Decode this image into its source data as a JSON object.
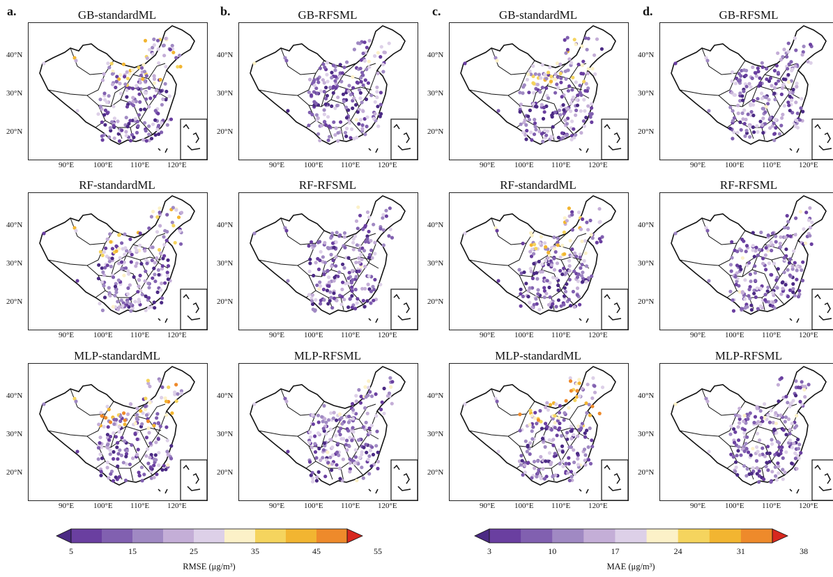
{
  "column_labels": [
    "a.",
    "b.",
    "c.",
    "d."
  ],
  "row_models": [
    "GB",
    "RF",
    "MLP"
  ],
  "panels": [
    [
      "GB-standardML",
      "GB-RFSML",
      "GB-standardML",
      "GB-RFSML"
    ],
    [
      "RF-standardML",
      "RF-RFSML",
      "RF-standardML",
      "RF-RFSML"
    ],
    [
      "MLP-standardML",
      "MLP-RFSML",
      "MLP-standardML",
      "MLP-RFSML"
    ]
  ],
  "panel_hot_level": [
    [
      0.75,
      0.25,
      0.7,
      0.2
    ],
    [
      0.8,
      0.25,
      0.75,
      0.25
    ],
    [
      0.9,
      0.3,
      0.85,
      0.3
    ]
  ],
  "lat_labels": [
    "40°N",
    "30°N",
    "20°N"
  ],
  "lon_labels": [
    "90°E",
    "100°E",
    "110°E",
    "120°E"
  ],
  "colorbars": [
    {
      "label": "RMSE (μg/m³)",
      "ticks": [
        "5",
        "15",
        "25",
        "35",
        "45",
        "55"
      ],
      "colors": [
        "#4b2a84",
        "#6a3fa0",
        "#8160b0",
        "#a089c3",
        "#c4aed7",
        "#ddd0e8",
        "#fcf1c8",
        "#f5d45e",
        "#f2b531",
        "#ee8a2b",
        "#d7281f"
      ]
    },
    {
      "label": "MAE (μg/m³)",
      "ticks": [
        "3",
        "10",
        "17",
        "24",
        "31",
        "38"
      ],
      "colors": [
        "#4b2a84",
        "#6a3fa0",
        "#8160b0",
        "#a089c3",
        "#c4aed7",
        "#ddd0e8",
        "#fcf1c8",
        "#f5d45e",
        "#f2b531",
        "#ee8a2b",
        "#d7281f"
      ]
    }
  ]
}
